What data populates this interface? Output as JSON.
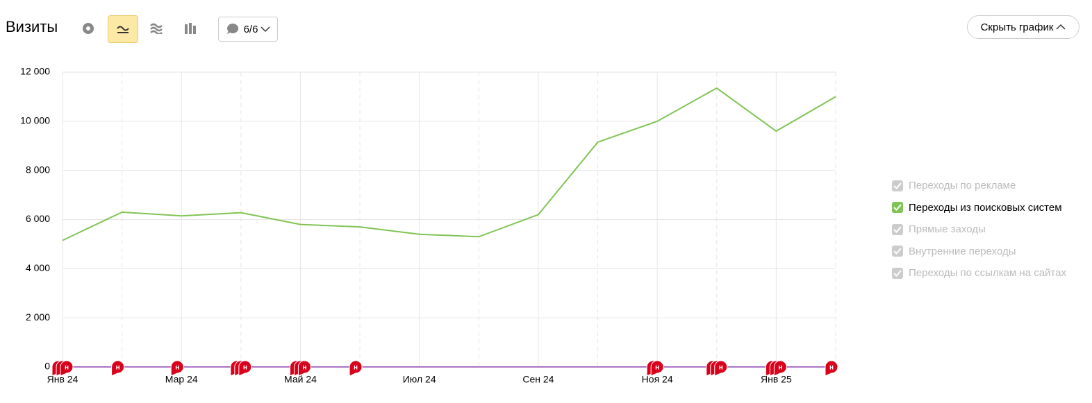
{
  "header": {
    "title": "Визиты",
    "notes_count": "6/6",
    "hide_button": "Скрыть график"
  },
  "legend": [
    {
      "label": "Переходы по рекламе",
      "checked": false
    },
    {
      "label": null,
      "checked": true
    },
    {
      "label": "Прямые заходы",
      "checked": false
    },
    {
      "label": "Внутренние переходы",
      "checked": false
    },
    {
      "label": "Переходы по ссылкам на сайтах",
      "checked": false
    }
  ],
  "chart_data": {
    "type": "line",
    "categories": [
      "Янв 24",
      null,
      "Мар 24",
      null,
      "Май 24",
      null,
      "Июл 24",
      null,
      "Сен 24",
      null,
      "Ноя 24",
      null,
      "Янв 25",
      null
    ],
    "series": [
      {
        "name": "Переходы из поисковых систем",
        "color": "#80c454",
        "values": [
          5150,
          6300,
          6150,
          6280,
          5800,
          5700,
          5400,
          5300,
          6200,
          9150,
          10000,
          11350,
          9600,
          11000
        ]
      }
    ],
    "ylim": [
      0,
      12000
    ],
    "yticks": [
      0,
      {
        "value": 2000,
        "label": "2 000"
      },
      {
        "value": 4000,
        "label": "4 000"
      },
      {
        "value": 6000,
        "label": "6 000"
      },
      {
        "value": 8000,
        "label": "8 000"
      },
      {
        "value": 10000,
        "label": "10 000"
      },
      {
        "value": 12000,
        "label": "12 000"
      }
    ],
    "grid": true,
    "annotations": {
      "label": "н",
      "at": [
        0,
        0,
        0,
        1,
        2,
        3,
        3,
        3,
        4,
        4,
        4,
        5,
        10,
        10,
        11,
        11,
        11,
        12,
        12,
        12,
        13
      ]
    }
  }
}
